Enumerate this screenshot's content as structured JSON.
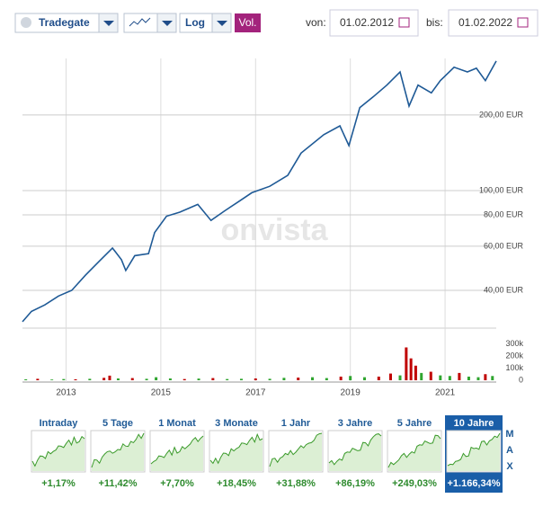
{
  "toolbar": {
    "exchange": "Tradegate",
    "scale": "Log",
    "volume": "Vol.",
    "from_label": "von:",
    "from": "01.02.2012",
    "to_label": "bis:",
    "to": "01.02.2022"
  },
  "chart_data": [
    {
      "type": "line",
      "watermark": "onvista",
      "log_scale": true,
      "grid": true,
      "x": [
        2012.08,
        2012.27,
        2012.55,
        2012.84,
        2013.12,
        2013.41,
        2013.69,
        2013.98,
        2014.17,
        2014.26,
        2014.45,
        2014.74,
        2014.87,
        2015.12,
        2015.4,
        2015.78,
        2016.06,
        2016.35,
        2016.63,
        2016.92,
        2017.3,
        2017.68,
        2017.96,
        2018.44,
        2018.78,
        2018.97,
        2019.2,
        2019.48,
        2019.77,
        2020.05,
        2020.24,
        2020.43,
        2020.71,
        2020.9,
        2021.19,
        2021.47,
        2021.66,
        2021.85,
        2022.08
      ],
      "series": [
        {
          "color": "#1f5a96",
          "values": [
            30,
            33,
            35,
            38,
            40,
            46,
            52,
            59,
            53,
            48,
            55,
            56,
            68,
            79,
            82,
            88,
            76,
            83,
            90,
            98,
            104,
            115,
            141,
            167,
            181,
            151,
            214,
            236,
            263,
            297,
            217,
            263,
            245,
            274,
            310,
            297,
            307,
            274,
            328
          ]
        }
      ],
      "xlim": [
        2012.08,
        2022.08
      ],
      "ylim": [
        28.3,
        336
      ],
      "yticks": [
        {
          "value": 40,
          "label": "40,00 EUR"
        },
        {
          "value": 60,
          "label": "60,00 EUR"
        },
        {
          "value": 80,
          "label": "80,00 EUR"
        },
        {
          "value": 100,
          "label": "100,00 EUR"
        },
        {
          "value": 200,
          "label": "200,00 EUR"
        }
      ]
    },
    {
      "type": "bar",
      "x": [
        2012.15,
        2012.4,
        2012.7,
        2012.95,
        2013.2,
        2013.5,
        2013.8,
        2013.92,
        2014.1,
        2014.4,
        2014.7,
        2014.9,
        2015.2,
        2015.5,
        2015.8,
        2016.1,
        2016.4,
        2016.7,
        2017.0,
        2017.3,
        2017.6,
        2017.9,
        2018.2,
        2018.5,
        2018.8,
        2019.0,
        2019.3,
        2019.6,
        2019.85,
        2020.05,
        2020.18,
        2020.28,
        2020.38,
        2020.5,
        2020.7,
        2020.9,
        2021.1,
        2021.3,
        2021.5,
        2021.7,
        2021.85,
        2022.0
      ],
      "values": [
        8000,
        12000,
        6000,
        10000,
        8000,
        12000,
        20000,
        38000,
        15000,
        18000,
        12000,
        25000,
        15000,
        10000,
        14000,
        18000,
        10000,
        12000,
        15000,
        12000,
        20000,
        22000,
        25000,
        18000,
        30000,
        35000,
        25000,
        30000,
        55000,
        40000,
        270000,
        180000,
        120000,
        60000,
        70000,
        40000,
        35000,
        60000,
        30000,
        25000,
        50000,
        35000
      ],
      "colors": [
        "#2fa52f",
        "#c00000",
        "#2fa52f",
        "#2fa52f",
        "#c00000",
        "#2fa52f",
        "#c00000",
        "#c00000",
        "#2fa52f",
        "#c00000",
        "#2fa52f",
        "#2fa52f",
        "#2fa52f",
        "#c00000",
        "#2fa52f",
        "#c00000",
        "#2fa52f",
        "#2fa52f",
        "#c00000",
        "#2fa52f",
        "#2fa52f",
        "#c00000",
        "#2fa52f",
        "#2fa52f",
        "#c00000",
        "#2fa52f",
        "#2fa52f",
        "#c00000",
        "#c00000",
        "#2fa52f",
        "#c00000",
        "#c00000",
        "#c00000",
        "#2fa52f",
        "#c00000",
        "#2fa52f",
        "#2fa52f",
        "#c00000",
        "#2fa52f",
        "#2fa52f",
        "#c00000",
        "#2fa52f"
      ],
      "xlim": [
        2012.08,
        2022.08
      ],
      "xticks": [
        2013,
        2015,
        2017,
        2019,
        2021
      ],
      "ylim": [
        0,
        355000
      ],
      "yticks": [
        0,
        {
          "value": 100000,
          "label": "100k"
        },
        {
          "value": 200000,
          "label": "200k"
        },
        {
          "value": 300000,
          "label": "300k"
        }
      ]
    }
  ],
  "periods": {
    "selected": 7,
    "max": "MAX",
    "tabs": [
      {
        "label": "Intraday",
        "change": "+1,17%"
      },
      {
        "label": "5 Tage",
        "change": "+11,42%"
      },
      {
        "label": "1 Monat",
        "change": "+7,70%"
      },
      {
        "label": "3 Monate",
        "change": "+18,45%"
      },
      {
        "label": "1 Jahr",
        "change": "+31,88%"
      },
      {
        "label": "3 Jahre",
        "change": "+86,19%"
      },
      {
        "label": "5 Jahre",
        "change": "+249,03%"
      },
      {
        "label": "10 Jahre",
        "change": "+1.166,34%"
      }
    ]
  }
}
